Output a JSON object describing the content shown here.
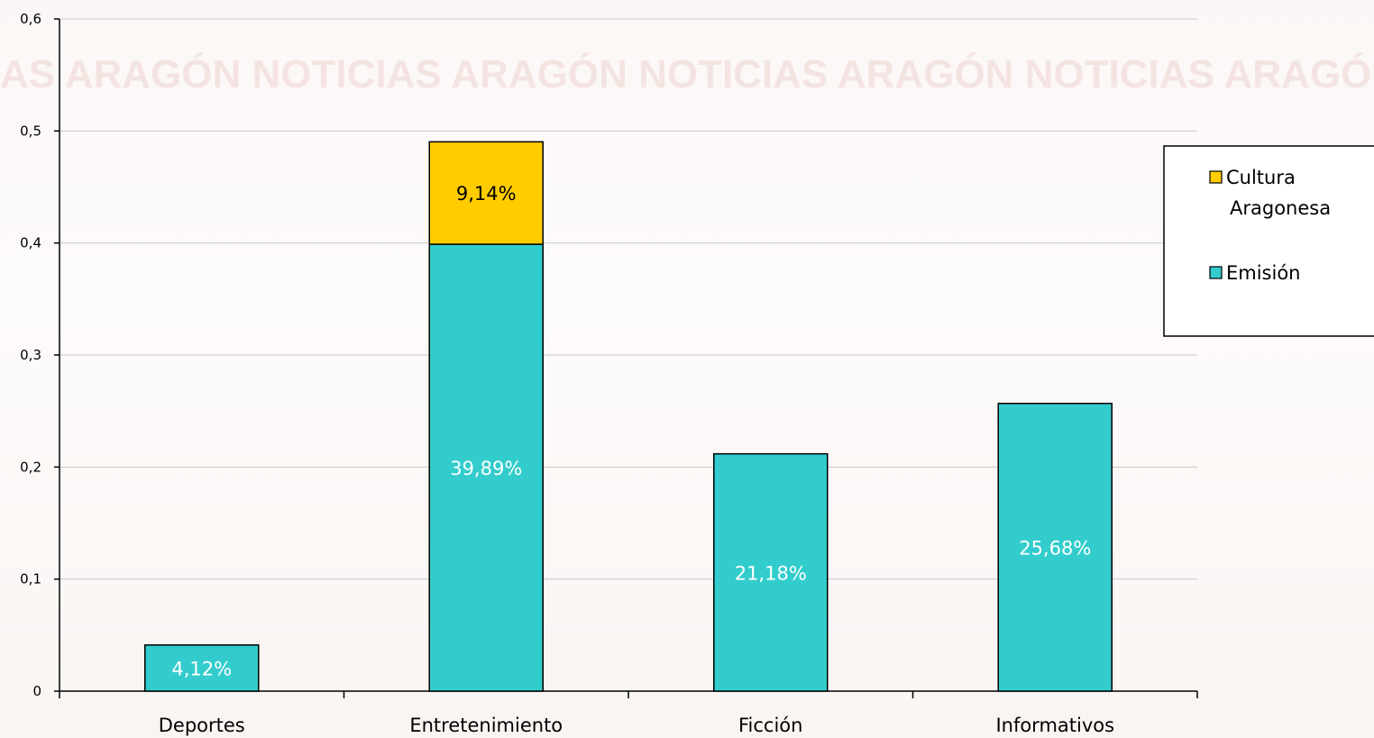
{
  "chart_data": {
    "type": "bar",
    "stacked": true,
    "categories": [
      "Deportes",
      "Entretenimiento",
      "Ficción",
      "Informativos"
    ],
    "series": [
      {
        "name": "Emisión",
        "color": "#33cccc",
        "values": [
          0.0412,
          0.3989,
          0.2118,
          0.2568
        ],
        "labels": [
          "4,12%",
          "39,89%",
          "21,18%",
          "25,68%"
        ]
      },
      {
        "name": "Cultura Aragonesa",
        "color": "#ffcc00",
        "values": [
          0,
          0.0914,
          0,
          0
        ],
        "labels": [
          "",
          "9,14%",
          "",
          ""
        ]
      }
    ],
    "yticks": [
      "0",
      "0,1",
      "0,2",
      "0,3",
      "0,4",
      "0,5",
      "0,6"
    ],
    "ylim": [
      0,
      0.6
    ],
    "grid": true,
    "legend_placement": "right",
    "legend": [
      {
        "label_line1": "Cultura",
        "label_line2": "Aragonesa",
        "color": "#ffcc00"
      },
      {
        "label_line1": "Emisión",
        "label_line2": "",
        "color": "#33cccc"
      }
    ],
    "watermark_text": "AS ARAGÓN NOTICIAS ARAGÓN NOTICIAS ARAGÓN NOTICIAS ARAGÓN NOTICIAS"
  }
}
